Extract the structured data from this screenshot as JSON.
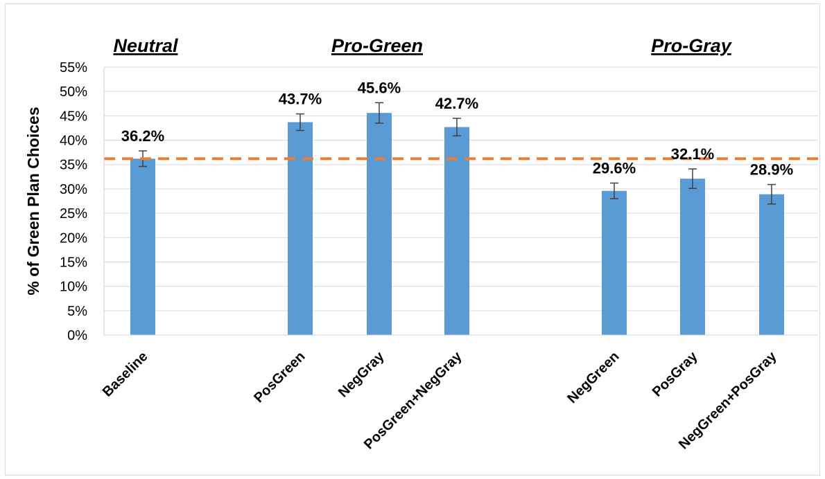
{
  "chart_data": {
    "type": "bar",
    "categories": [
      "Baseline",
      "PosGreen",
      "NegGray",
      "PosGreen+NegGray",
      "NegGreen",
      "PosGray",
      "NegGreen+PosGray"
    ],
    "values": [
      36.2,
      43.7,
      45.6,
      42.7,
      29.6,
      32.1,
      28.9
    ],
    "error": [
      1.6,
      1.7,
      2.1,
      1.8,
      1.6,
      2.0,
      2.0
    ],
    "data_labels": [
      "36.2%",
      "43.7%",
      "45.6%",
      "42.7%",
      "29.6%",
      "32.1%",
      "28.9%"
    ],
    "groups": [
      {
        "label": "Neutral",
        "categories": [
          "Baseline"
        ]
      },
      {
        "label": "Pro-Green",
        "categories": [
          "PosGreen",
          "NegGray",
          "PosGreen+NegGray"
        ]
      },
      {
        "label": "Pro-Gray",
        "categories": [
          "NegGreen",
          "PosGray",
          "NegGreen+PosGray"
        ]
      }
    ],
    "reference_line": 36.2,
    "ylabel": "% of Green Plan Choices",
    "xlabel": "",
    "ylim": [
      0,
      55
    ],
    "yticks": [
      "0%",
      "5%",
      "10%",
      "15%",
      "20%",
      "25%",
      "30%",
      "35%",
      "40%",
      "45%",
      "50%",
      "55%"
    ],
    "grid": true,
    "colors": {
      "bar": "#5b9bd5",
      "reference_line": "#ed7d31",
      "grid": "#d9d9d9",
      "error_bar": "#404040"
    }
  }
}
